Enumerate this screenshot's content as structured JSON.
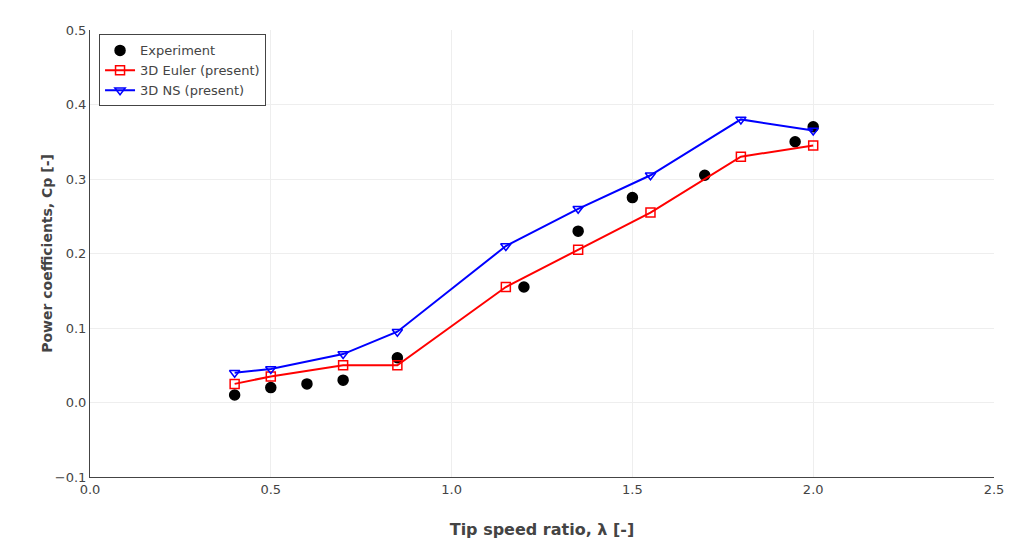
{
  "chart_data": {
    "type": "line",
    "xlabel": "Tip speed ratio, λ [-]",
    "ylabel": "Power coefficients, Cp [-]",
    "series": [
      {
        "name": "Experiment",
        "type": "scatter",
        "color": "#000000",
        "marker": "circle",
        "x": [
          0.4,
          0.5,
          0.6,
          0.7,
          0.85,
          1.2,
          1.35,
          1.5,
          1.7,
          1.95,
          2.0
        ],
        "values": [
          0.01,
          0.02,
          0.025,
          0.03,
          0.06,
          0.155,
          0.23,
          0.275,
          0.305,
          0.35,
          0.37
        ]
      },
      {
        "name": "3D Euler (present)",
        "type": "line",
        "color": "#ff0000",
        "marker": "square-open",
        "x": [
          0.4,
          0.5,
          0.7,
          0.85,
          1.15,
          1.35,
          1.55,
          1.8,
          2.0
        ],
        "values": [
          0.025,
          0.035,
          0.05,
          0.05,
          0.155,
          0.205,
          0.255,
          0.33,
          0.345
        ]
      },
      {
        "name": "3D NS (present)",
        "type": "line",
        "color": "#0000ff",
        "marker": "triangle-down-open",
        "x": [
          0.4,
          0.5,
          0.7,
          0.85,
          1.15,
          1.35,
          1.55,
          1.8,
          2.0
        ],
        "values": [
          0.04,
          0.045,
          0.065,
          0.095,
          0.21,
          0.26,
          0.305,
          0.38,
          0.365
        ]
      }
    ],
    "xlim": [
      0,
      2.5
    ],
    "ylim": [
      -0.1,
      0.5
    ],
    "xticks": [
      {
        "value": 0,
        "label": "0.0"
      },
      0.5,
      {
        "value": 1,
        "label": "1.0"
      },
      1.5,
      {
        "value": 2,
        "label": "2.0"
      },
      2.5
    ],
    "yticks": [
      {
        "value": -0.1,
        "label": "−0.1"
      },
      {
        "value": 0,
        "label": "0.0"
      },
      0.1,
      0.2,
      0.3,
      0.4,
      0.5
    ],
    "grid": true,
    "legend": "upper left"
  }
}
